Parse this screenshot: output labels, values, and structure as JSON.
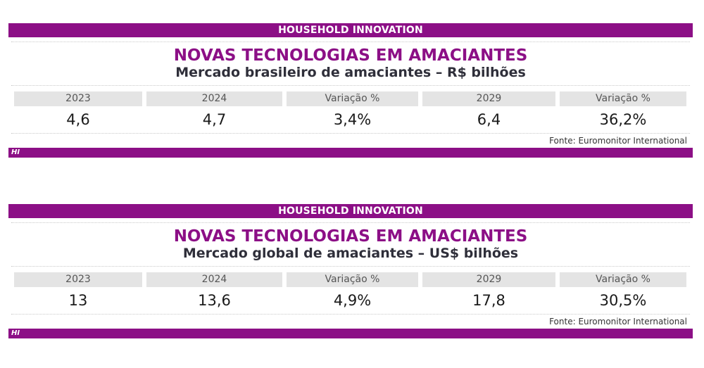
{
  "panels": [
    {
      "band": "HOUSEHOLD INNOVATION",
      "title": "NOVAS TECNOLOGIAS EM AMACIANTES",
      "subtitle": "Mercado brasileiro de amaciantes – R$ bilhões",
      "headers": [
        "2023",
        "2024",
        "Variação %",
        "2029",
        "Variação %"
      ],
      "values": [
        "4,6",
        "4,7",
        "3,4%",
        "6,4",
        "36,2%"
      ],
      "source": "Fonte: Euromonitor International",
      "footer": "HI"
    },
    {
      "band": "HOUSEHOLD INNOVATION",
      "title": "NOVAS TECNOLOGIAS EM AMACIANTES",
      "subtitle": "Mercado global de amaciantes – US$ bilhões",
      "headers": [
        "2023",
        "2024",
        "Variação %",
        "2029",
        "Variação %"
      ],
      "values": [
        "13",
        "13,6",
        "4,9%",
        "17,8",
        "30,5%"
      ],
      "source": "Fonte: Euromonitor International",
      "footer": "HI"
    }
  ],
  "colors": {
    "brand": "#8c0f86",
    "header_bg": "#e4e4e4",
    "text": "#2f2f3a"
  }
}
